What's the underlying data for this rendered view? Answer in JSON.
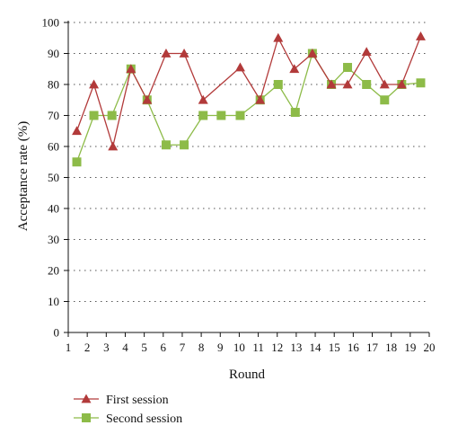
{
  "chart_data": {
    "type": "line",
    "title": "",
    "xlabel": "Round",
    "ylabel": "Acceptance rate (%)",
    "xlim": [
      1,
      20
    ],
    "ylim": [
      0,
      100
    ],
    "xticks": [
      1,
      2,
      3,
      4,
      5,
      6,
      7,
      8,
      9,
      10,
      11,
      12,
      13,
      14,
      15,
      16,
      17,
      18,
      19,
      20
    ],
    "yticks": [
      0,
      10,
      20,
      30,
      40,
      50,
      60,
      70,
      80,
      90,
      100
    ],
    "grid": "horizontal dotted",
    "legend_position": "bottom-left",
    "series": [
      {
        "name": "First session",
        "color": "#b23a3a",
        "marker": "triangle",
        "x": [
          1.45,
          2.35,
          3.35,
          4.3,
          5.15,
          6.15,
          7.1,
          8.1,
          10.05,
          11.1,
          12.05,
          12.9,
          13.85,
          14.85,
          15.7,
          16.7,
          17.65,
          18.55,
          19.55
        ],
        "y": [
          65,
          80,
          60,
          85,
          75,
          90,
          90,
          75,
          85.5,
          75,
          95,
          85,
          90,
          80,
          80,
          90.5,
          80,
          80,
          95.5
        ]
      },
      {
        "name": "Second session",
        "color": "#8dbb48",
        "marker": "square",
        "x": [
          1.45,
          2.35,
          3.3,
          4.3,
          5.15,
          6.15,
          7.1,
          8.1,
          9.05,
          10.05,
          11.1,
          12.05,
          12.95,
          13.85,
          14.85,
          15.7,
          16.7,
          17.65,
          18.55,
          19.55
        ],
        "y": [
          55,
          70,
          70,
          85,
          75,
          60.5,
          60.5,
          70,
          70,
          70,
          75,
          80,
          71,
          90,
          80,
          85.5,
          80,
          75,
          80,
          80.5
        ]
      }
    ]
  }
}
